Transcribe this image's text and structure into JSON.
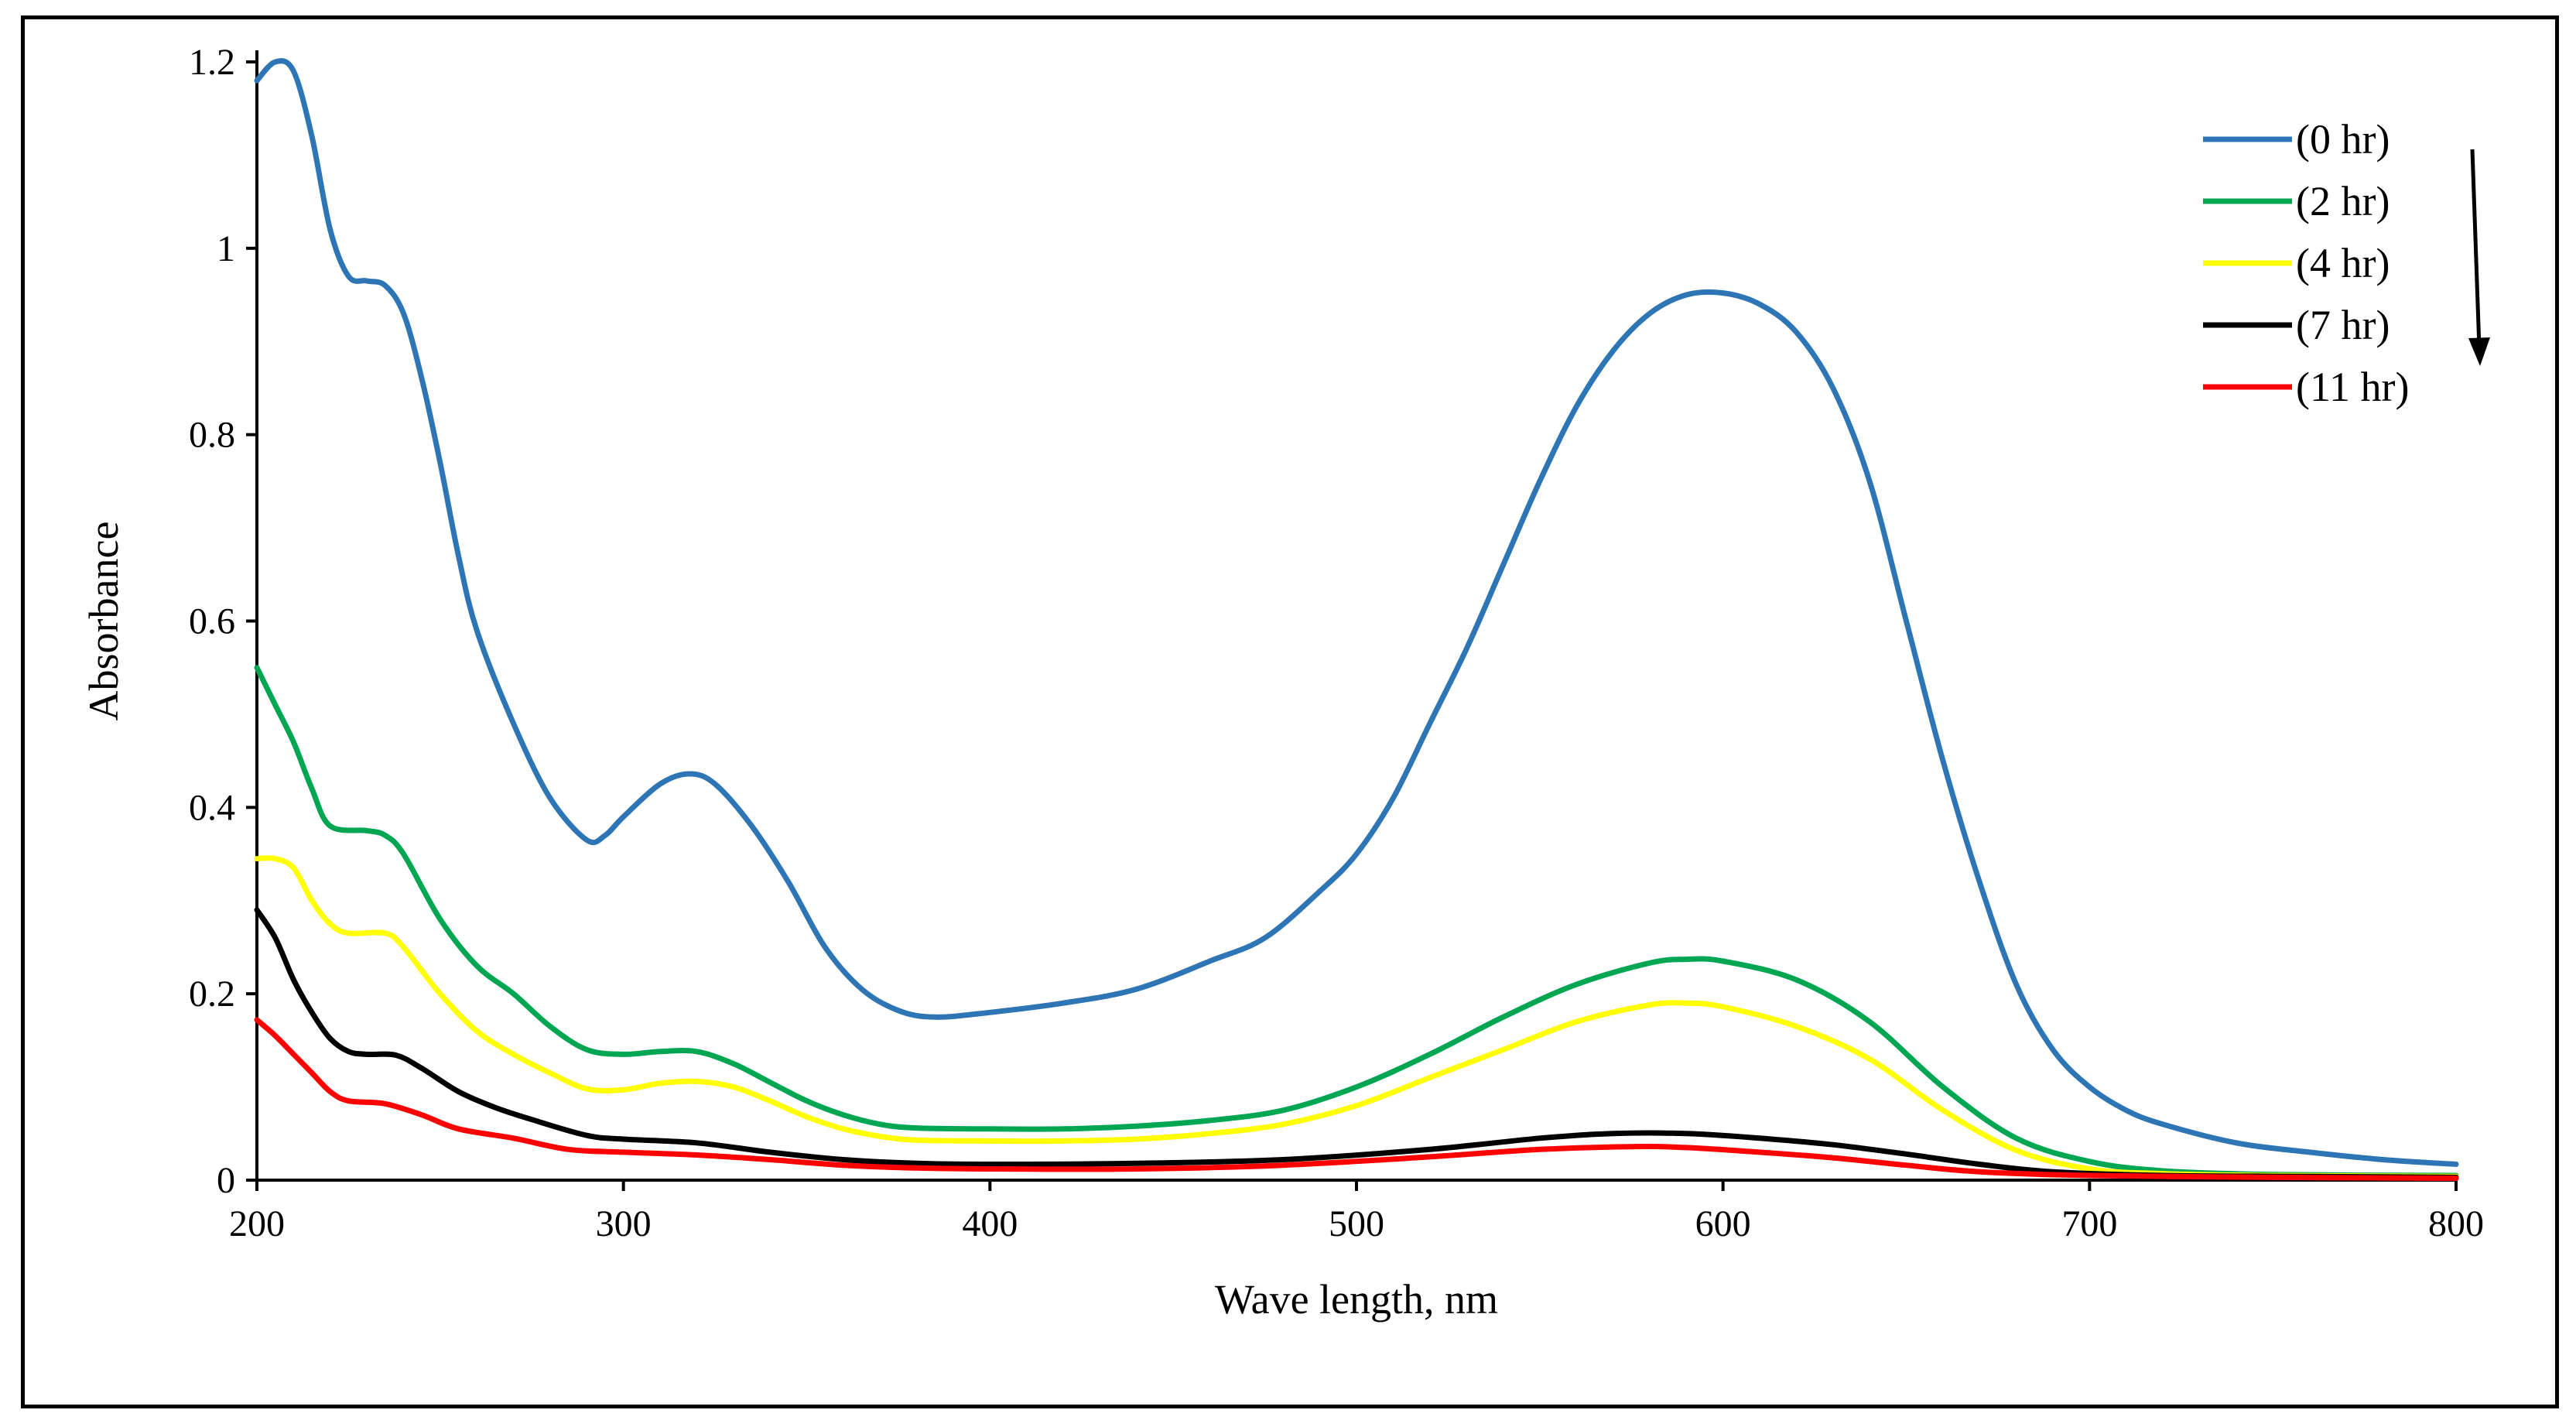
{
  "chart_data": {
    "type": "line",
    "title": "",
    "xlabel": "Wave length, nm",
    "ylabel": "Absorbance",
    "xlim": [
      200,
      800
    ],
    "ylim": [
      0,
      1.2
    ],
    "xticks": [
      200,
      300,
      400,
      500,
      600,
      700,
      800
    ],
    "yticks": [
      0,
      0.2,
      0.4,
      0.6,
      0.8,
      1,
      1.2
    ],
    "xtick_labels": [
      "200",
      "300",
      "400",
      "500",
      "600",
      "700",
      "800"
    ],
    "ytick_labels": [
      "0",
      "0.2",
      "0.4",
      "0.6",
      "0.8",
      "1",
      "1.2"
    ],
    "grid": false,
    "legend_position": "top-right",
    "annotation": "downward arrow beside legend",
    "series": [
      {
        "name": "(0 hr)",
        "color": "#2E75B6",
        "points": [
          [
            200,
            1.18
          ],
          [
            205,
            1.2
          ],
          [
            210,
            1.19
          ],
          [
            215,
            1.12
          ],
          [
            220,
            1.02
          ],
          [
            225,
            0.97
          ],
          [
            230,
            0.965
          ],
          [
            235,
            0.96
          ],
          [
            240,
            0.93
          ],
          [
            245,
            0.86
          ],
          [
            250,
            0.77
          ],
          [
            255,
            0.67
          ],
          [
            260,
            0.59
          ],
          [
            270,
            0.49
          ],
          [
            280,
            0.41
          ],
          [
            290,
            0.365
          ],
          [
            295,
            0.37
          ],
          [
            300,
            0.39
          ],
          [
            310,
            0.425
          ],
          [
            318,
            0.436
          ],
          [
            325,
            0.425
          ],
          [
            335,
            0.38
          ],
          [
            345,
            0.32
          ],
          [
            355,
            0.25
          ],
          [
            365,
            0.205
          ],
          [
            375,
            0.182
          ],
          [
            385,
            0.175
          ],
          [
            400,
            0.18
          ],
          [
            420,
            0.19
          ],
          [
            440,
            0.205
          ],
          [
            460,
            0.235
          ],
          [
            475,
            0.26
          ],
          [
            490,
            0.31
          ],
          [
            500,
            0.35
          ],
          [
            510,
            0.41
          ],
          [
            520,
            0.49
          ],
          [
            530,
            0.57
          ],
          [
            540,
            0.66
          ],
          [
            550,
            0.75
          ],
          [
            560,
            0.83
          ],
          [
            570,
            0.89
          ],
          [
            580,
            0.93
          ],
          [
            590,
            0.95
          ],
          [
            600,
            0.952
          ],
          [
            610,
            0.94
          ],
          [
            620,
            0.91
          ],
          [
            630,
            0.85
          ],
          [
            640,
            0.75
          ],
          [
            650,
            0.6
          ],
          [
            660,
            0.45
          ],
          [
            670,
            0.32
          ],
          [
            680,
            0.21
          ],
          [
            690,
            0.14
          ],
          [
            700,
            0.1
          ],
          [
            710,
            0.075
          ],
          [
            720,
            0.06
          ],
          [
            740,
            0.04
          ],
          [
            760,
            0.03
          ],
          [
            780,
            0.022
          ],
          [
            800,
            0.017
          ]
        ]
      },
      {
        "name": "(2 hr)",
        "color": "#00A651",
        "points": [
          [
            200,
            0.55
          ],
          [
            205,
            0.51
          ],
          [
            210,
            0.47
          ],
          [
            215,
            0.42
          ],
          [
            220,
            0.38
          ],
          [
            230,
            0.375
          ],
          [
            235,
            0.37
          ],
          [
            240,
            0.35
          ],
          [
            250,
            0.28
          ],
          [
            260,
            0.23
          ],
          [
            270,
            0.2
          ],
          [
            280,
            0.165
          ],
          [
            290,
            0.14
          ],
          [
            300,
            0.135
          ],
          [
            310,
            0.138
          ],
          [
            320,
            0.138
          ],
          [
            330,
            0.125
          ],
          [
            340,
            0.105
          ],
          [
            350,
            0.085
          ],
          [
            360,
            0.07
          ],
          [
            370,
            0.06
          ],
          [
            380,
            0.056
          ],
          [
            400,
            0.055
          ],
          [
            420,
            0.055
          ],
          [
            440,
            0.058
          ],
          [
            460,
            0.064
          ],
          [
            480,
            0.075
          ],
          [
            500,
            0.1
          ],
          [
            520,
            0.135
          ],
          [
            540,
            0.175
          ],
          [
            560,
            0.21
          ],
          [
            580,
            0.233
          ],
          [
            590,
            0.237
          ],
          [
            600,
            0.235
          ],
          [
            620,
            0.215
          ],
          [
            640,
            0.17
          ],
          [
            660,
            0.1
          ],
          [
            680,
            0.045
          ],
          [
            700,
            0.02
          ],
          [
            720,
            0.01
          ],
          [
            750,
            0.006
          ],
          [
            800,
            0.005
          ]
        ]
      },
      {
        "name": "(4 hr)",
        "color": "#FFFF00",
        "points": [
          [
            200,
            0.345
          ],
          [
            205,
            0.345
          ],
          [
            210,
            0.335
          ],
          [
            215,
            0.3
          ],
          [
            220,
            0.275
          ],
          [
            225,
            0.265
          ],
          [
            235,
            0.265
          ],
          [
            240,
            0.25
          ],
          [
            250,
            0.2
          ],
          [
            260,
            0.16
          ],
          [
            270,
            0.135
          ],
          [
            280,
            0.115
          ],
          [
            290,
            0.098
          ],
          [
            300,
            0.097
          ],
          [
            310,
            0.104
          ],
          [
            320,
            0.106
          ],
          [
            330,
            0.1
          ],
          [
            340,
            0.085
          ],
          [
            350,
            0.068
          ],
          [
            360,
            0.055
          ],
          [
            370,
            0.047
          ],
          [
            380,
            0.043
          ],
          [
            400,
            0.042
          ],
          [
            420,
            0.042
          ],
          [
            440,
            0.044
          ],
          [
            460,
            0.05
          ],
          [
            480,
            0.06
          ],
          [
            500,
            0.08
          ],
          [
            520,
            0.11
          ],
          [
            540,
            0.14
          ],
          [
            560,
            0.17
          ],
          [
            580,
            0.188
          ],
          [
            590,
            0.19
          ],
          [
            600,
            0.186
          ],
          [
            620,
            0.165
          ],
          [
            640,
            0.13
          ],
          [
            660,
            0.075
          ],
          [
            680,
            0.032
          ],
          [
            700,
            0.012
          ],
          [
            720,
            0.007
          ],
          [
            750,
            0.005
          ],
          [
            800,
            0.004
          ]
        ]
      },
      {
        "name": "(7 hr)",
        "color": "#000000",
        "points": [
          [
            200,
            0.29
          ],
          [
            205,
            0.26
          ],
          [
            210,
            0.215
          ],
          [
            215,
            0.18
          ],
          [
            220,
            0.152
          ],
          [
            225,
            0.138
          ],
          [
            230,
            0.135
          ],
          [
            238,
            0.134
          ],
          [
            245,
            0.12
          ],
          [
            255,
            0.095
          ],
          [
            265,
            0.078
          ],
          [
            275,
            0.065
          ],
          [
            290,
            0.048
          ],
          [
            300,
            0.044
          ],
          [
            320,
            0.04
          ],
          [
            340,
            0.03
          ],
          [
            360,
            0.022
          ],
          [
            380,
            0.018
          ],
          [
            400,
            0.017
          ],
          [
            440,
            0.018
          ],
          [
            480,
            0.022
          ],
          [
            520,
            0.033
          ],
          [
            550,
            0.045
          ],
          [
            570,
            0.05
          ],
          [
            590,
            0.05
          ],
          [
            610,
            0.045
          ],
          [
            630,
            0.038
          ],
          [
            650,
            0.028
          ],
          [
            670,
            0.017
          ],
          [
            690,
            0.009
          ],
          [
            720,
            0.005
          ],
          [
            760,
            0.004
          ],
          [
            800,
            0.003
          ]
        ]
      },
      {
        "name": "(11 hr)",
        "color": "#FF0000",
        "points": [
          [
            200,
            0.172
          ],
          [
            205,
            0.155
          ],
          [
            210,
            0.135
          ],
          [
            215,
            0.115
          ],
          [
            220,
            0.095
          ],
          [
            225,
            0.085
          ],
          [
            235,
            0.082
          ],
          [
            245,
            0.07
          ],
          [
            255,
            0.055
          ],
          [
            270,
            0.045
          ],
          [
            285,
            0.033
          ],
          [
            300,
            0.03
          ],
          [
            320,
            0.027
          ],
          [
            340,
            0.022
          ],
          [
            360,
            0.016
          ],
          [
            380,
            0.013
          ],
          [
            400,
            0.012
          ],
          [
            440,
            0.012
          ],
          [
            480,
            0.016
          ],
          [
            520,
            0.025
          ],
          [
            550,
            0.033
          ],
          [
            575,
            0.036
          ],
          [
            590,
            0.035
          ],
          [
            610,
            0.03
          ],
          [
            630,
            0.024
          ],
          [
            650,
            0.016
          ],
          [
            670,
            0.009
          ],
          [
            700,
            0.005
          ],
          [
            750,
            0.003
          ],
          [
            800,
            0.002
          ]
        ]
      }
    ]
  }
}
